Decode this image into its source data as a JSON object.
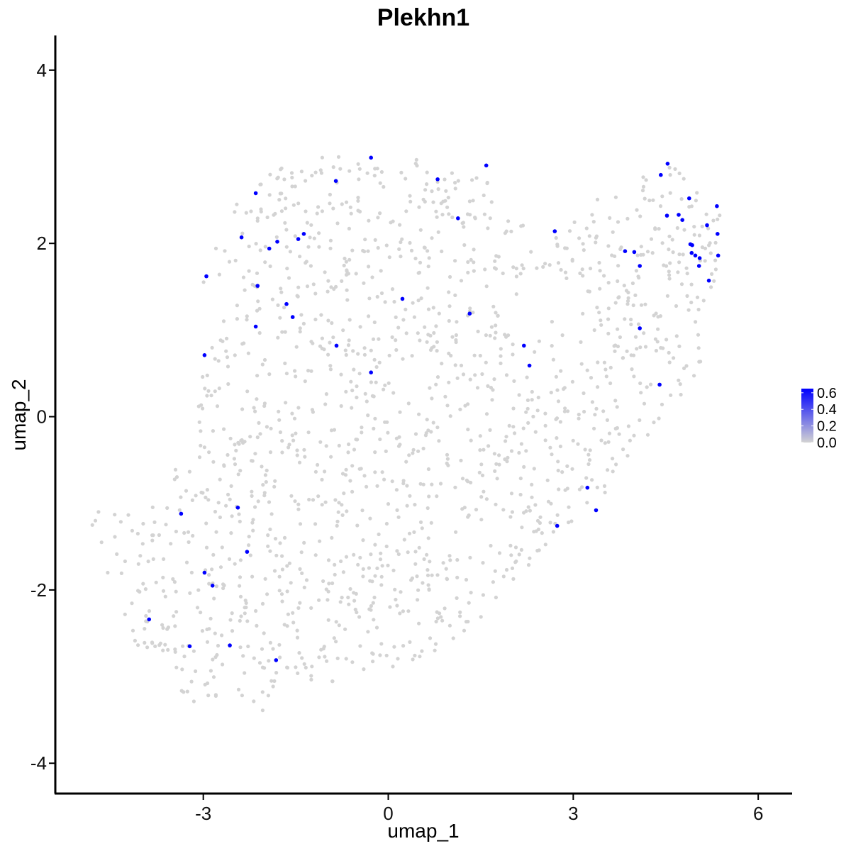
{
  "chart_data": {
    "type": "scatter",
    "title": "Plekhn1",
    "xlabel": "umap_1",
    "ylabel": "umap_2",
    "xlim": [
      -5.4,
      6.55
    ],
    "ylim": [
      -4.35,
      4.4
    ],
    "x_ticks": [
      -3,
      0,
      3,
      6
    ],
    "y_ticks": [
      -4,
      -2,
      0,
      2,
      4
    ],
    "x_tick_labels": [
      "-3",
      "0",
      "3",
      "6"
    ],
    "y_tick_labels": [
      "-4",
      "-2",
      "0",
      "2",
      "4"
    ],
    "grid": false,
    "legend": {
      "placement": "right",
      "type": "colorbar",
      "labels": [
        "0.6",
        "0.4",
        "0.2",
        "0.0"
      ],
      "values": [
        0.6,
        0.4,
        0.2,
        0.0
      ],
      "range": [
        0.0,
        0.65
      ]
    },
    "colors": {
      "low": "#d3d3d3",
      "high": "#0000ff"
    },
    "expressing_points": [
      [
        -0.28,
        2.99
      ],
      [
        1.59,
        2.9
      ],
      [
        0.8,
        2.74
      ],
      [
        -0.85,
        2.72
      ],
      [
        -2.15,
        2.58
      ],
      [
        4.53,
        2.92
      ],
      [
        4.42,
        2.79
      ],
      [
        4.88,
        2.52
      ],
      [
        5.33,
        2.43
      ],
      [
        4.71,
        2.33
      ],
      [
        4.52,
        2.32
      ],
      [
        4.77,
        2.27
      ],
      [
        5.17,
        2.21
      ],
      [
        1.13,
        2.29
      ],
      [
        2.7,
        2.14
      ],
      [
        5.34,
        2.11
      ],
      [
        -2.38,
        2.07
      ],
      [
        -1.37,
        2.11
      ],
      [
        -1.46,
        2.05
      ],
      [
        -1.8,
        2.02
      ],
      [
        -1.93,
        1.94
      ],
      [
        3.84,
        1.91
      ],
      [
        3.99,
        1.9
      ],
      [
        4.9,
        1.99
      ],
      [
        4.93,
        1.98
      ],
      [
        4.92,
        1.89
      ],
      [
        4.98,
        1.86
      ],
      [
        5.05,
        1.83
      ],
      [
        5.35,
        1.86
      ],
      [
        4.08,
        1.74
      ],
      [
        5.04,
        1.74
      ],
      [
        5.2,
        1.57
      ],
      [
        -2.95,
        1.62
      ],
      [
        -2.12,
        1.51
      ],
      [
        -1.65,
        1.3
      ],
      [
        -1.55,
        1.15
      ],
      [
        0.23,
        1.36
      ],
      [
        1.32,
        1.19
      ],
      [
        -2.15,
        1.04
      ],
      [
        4.08,
        1.02
      ],
      [
        -0.84,
        0.82
      ],
      [
        2.2,
        0.82
      ],
      [
        2.29,
        0.59
      ],
      [
        -0.28,
        0.51
      ],
      [
        -2.98,
        0.71
      ],
      [
        4.4,
        0.37
      ],
      [
        3.23,
        -0.82
      ],
      [
        3.37,
        -1.08
      ],
      [
        2.74,
        -1.26
      ],
      [
        -2.44,
        -1.05
      ],
      [
        -3.36,
        -1.12
      ],
      [
        -2.29,
        -1.56
      ],
      [
        -2.98,
        -1.8
      ],
      [
        -2.85,
        -1.95
      ],
      [
        -3.88,
        -2.34
      ],
      [
        -3.22,
        -2.65
      ],
      [
        -2.57,
        -2.64
      ],
      [
        -1.82,
        -2.81
      ]
    ],
    "background_cells_estimated": 1500
  }
}
